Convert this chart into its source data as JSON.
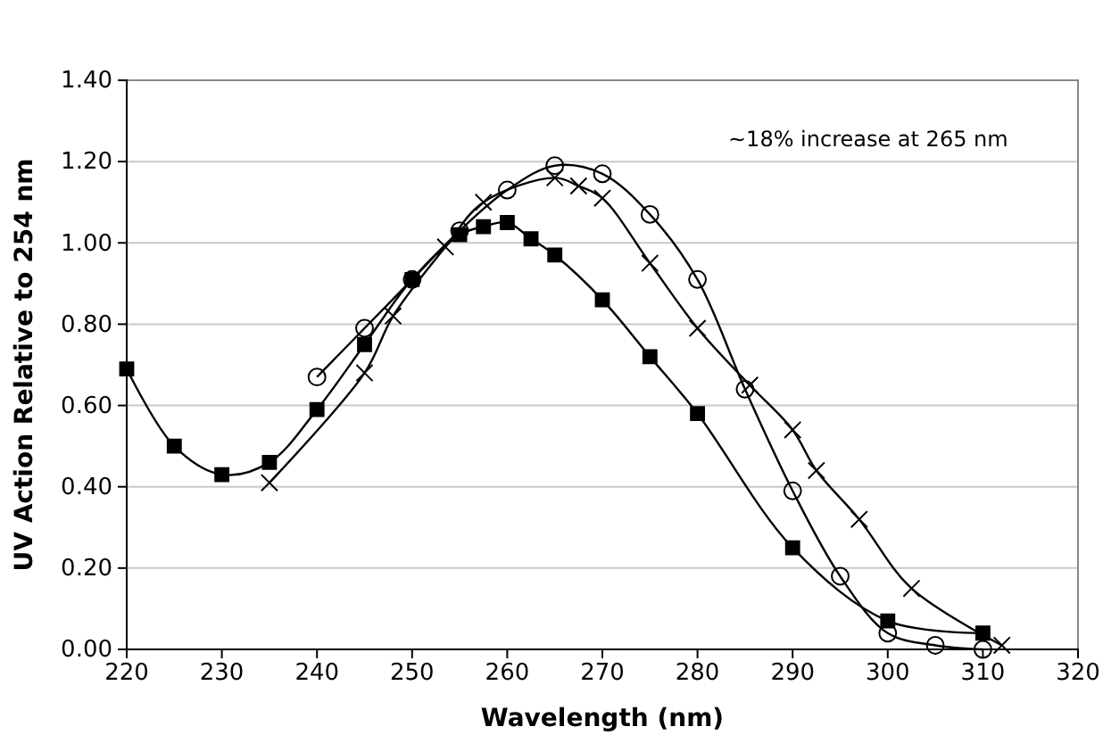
{
  "chart_data": {
    "type": "line",
    "xlabel": "Wavelength (nm)",
    "ylabel": "UV Action Relative to 254 nm",
    "xlim": [
      220,
      320
    ],
    "xticks": [
      220,
      230,
      240,
      250,
      260,
      270,
      280,
      290,
      300,
      310,
      320
    ],
    "ylim": [
      0,
      1.4
    ],
    "yticks": [
      {
        "value": 0,
        "label": "0.00"
      },
      {
        "value": 0.2,
        "label": "0.20"
      },
      {
        "value": 0.4,
        "label": "0.40"
      },
      {
        "value": 0.6,
        "label": "0.60"
      },
      {
        "value": 0.8,
        "label": "0.80"
      },
      {
        "value": 1,
        "label": "1.00"
      },
      {
        "value": 1.2,
        "label": "1.20"
      },
      {
        "value": 1.4,
        "label": "1.40"
      }
    ],
    "grid": "y",
    "annotations": [
      "~18% increase at 265 nm"
    ],
    "series": [
      {
        "color": "#000000",
        "marker": "square",
        "x": [
          220,
          225,
          230,
          235,
          240,
          245,
          250,
          255,
          257.5,
          260,
          262.5,
          265,
          270,
          275,
          280,
          290,
          300,
          310
        ],
        "values": [
          0.69,
          0.5,
          0.43,
          0.46,
          0.59,
          0.75,
          0.91,
          1.02,
          1.04,
          1.05,
          1.01,
          0.97,
          0.86,
          0.72,
          0.58,
          0.25,
          0.07,
          0.04
        ]
      },
      {
        "color": "#000000",
        "marker": "circle",
        "x": [
          240,
          245,
          250,
          255,
          260,
          265,
          270,
          275,
          280,
          285,
          290,
          295,
          300,
          305,
          310
        ],
        "values": [
          0.67,
          0.79,
          0.91,
          1.03,
          1.13,
          1.19,
          1.17,
          1.07,
          0.91,
          0.64,
          0.39,
          0.18,
          0.04,
          0.01,
          0
        ]
      },
      {
        "color": "#000000",
        "marker": "cross",
        "x": [
          235,
          245,
          248,
          253.5,
          257.5,
          265,
          267.5,
          270,
          275,
          280,
          285.5,
          290,
          292.5,
          297,
          302.5,
          312
        ],
        "values": [
          0.41,
          0.68,
          0.82,
          0.99,
          1.1,
          1.16,
          1.14,
          1.11,
          0.95,
          0.79,
          0.65,
          0.54,
          0.44,
          0.32,
          0.15,
          0.01
        ]
      }
    ]
  }
}
